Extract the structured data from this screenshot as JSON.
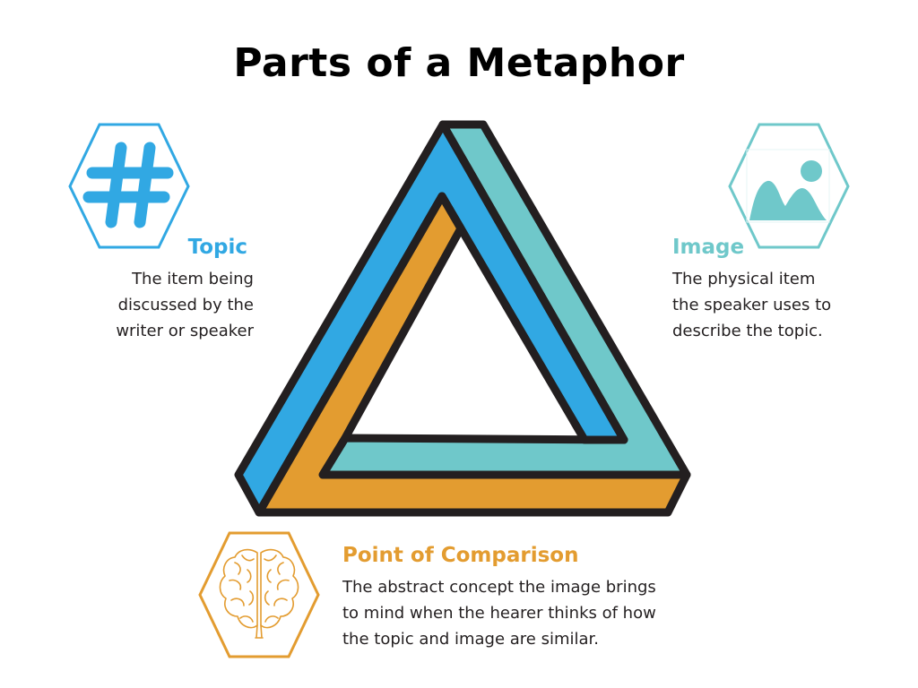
{
  "title": "Parts of a Metaphor",
  "colors": {
    "topic": "#31a8e3",
    "image": "#6fc8ca",
    "point_of_comparison": "#e39c30",
    "outline": "#231f20"
  },
  "topic": {
    "heading": "Topic",
    "lines": [
      "The item being",
      "discussed by the",
      "writer or speaker"
    ],
    "icon": "hashtag-icon"
  },
  "image": {
    "heading": "Image",
    "lines": [
      "The physical item",
      "the speaker uses to",
      "describe the topic."
    ],
    "icon": "picture-icon"
  },
  "point_of_comparison": {
    "heading": "Point of Comparison",
    "lines": [
      "The abstract concept the image brings",
      "to mind when the hearer thinks of how",
      "the topic and image are similar."
    ],
    "icon": "brain-icon"
  },
  "center_graphic": "penrose-triangle-icon"
}
